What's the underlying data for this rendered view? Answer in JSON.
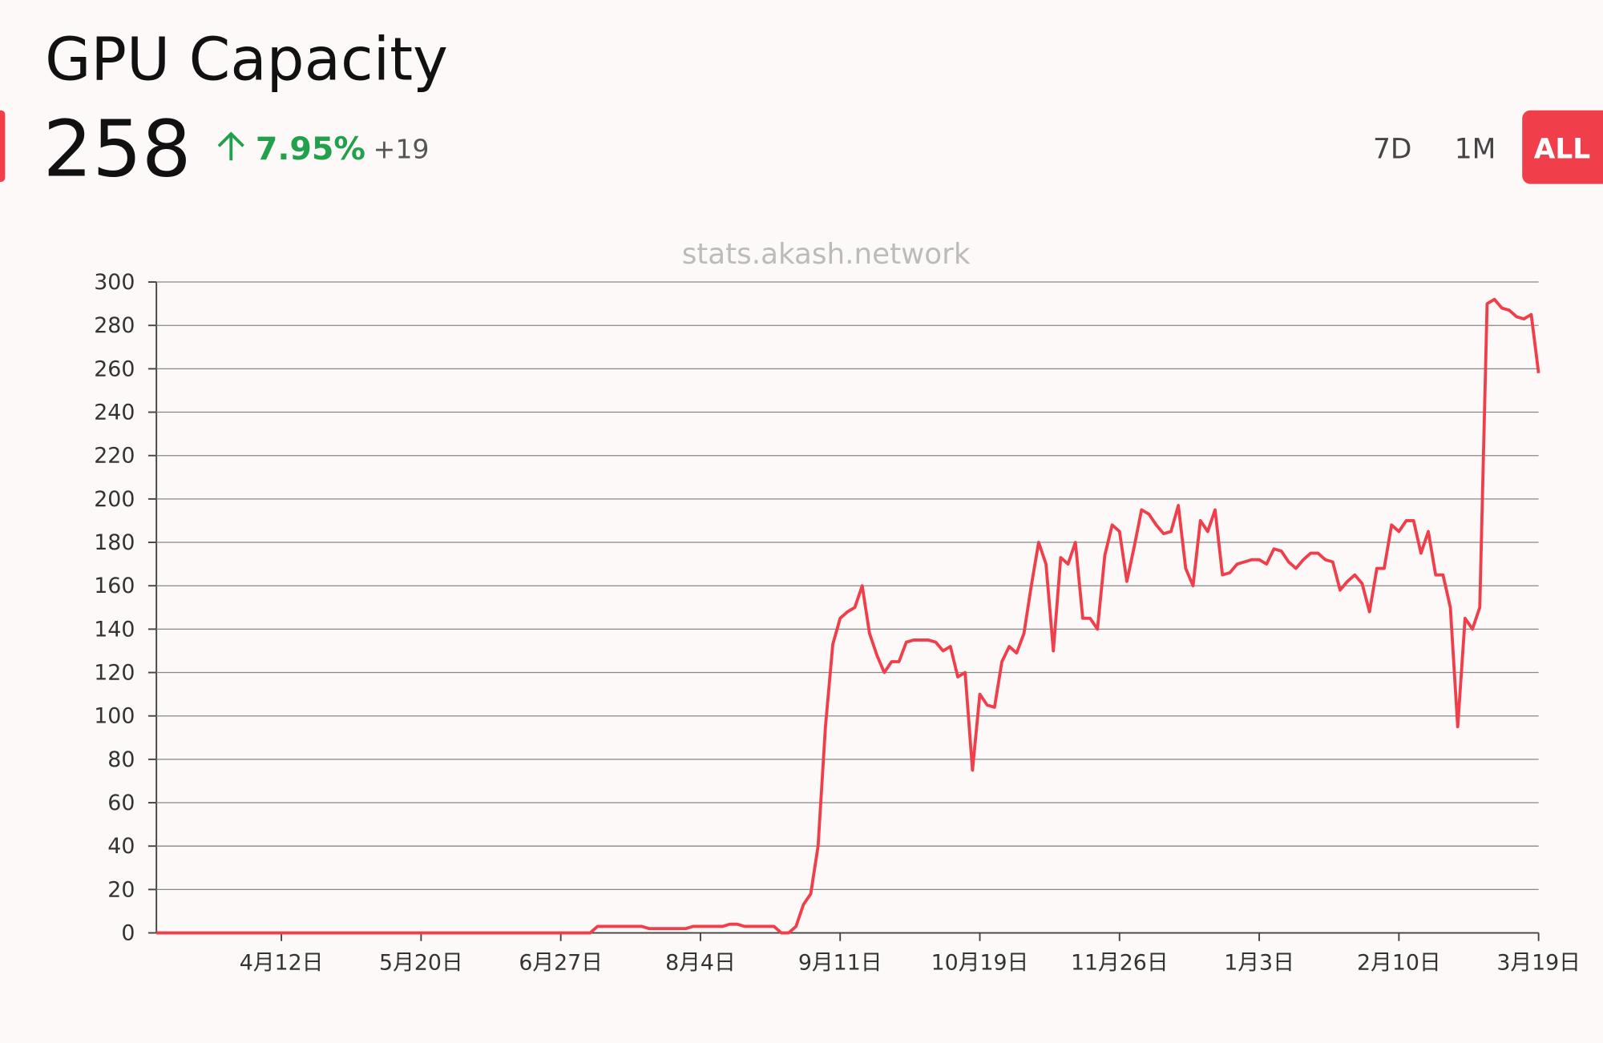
{
  "header": {
    "value": 258,
    "change": "7.95%",
    "delta": "+19"
  },
  "ranges": [
    "7D",
    "1M",
    "ALL"
  ],
  "selected_range": "ALL",
  "chart_data": {
    "type": "line",
    "title": "GPU Capacity",
    "watermark": "stats.akash.network",
    "color": "#f03e4b",
    "grid": true,
    "ylim": [
      0,
      300
    ],
    "yticks": [
      0,
      20,
      40,
      60,
      80,
      100,
      120,
      140,
      160,
      180,
      200,
      220,
      240,
      260,
      280,
      300
    ],
    "categories": [
      null,
      null,
      null,
      null,
      null,
      null,
      null,
      null,
      null,
      null,
      null,
      null,
      null,
      null,
      null,
      null,
      null,
      "4月12日",
      null,
      null,
      null,
      null,
      null,
      null,
      null,
      null,
      null,
      null,
      null,
      null,
      null,
      null,
      null,
      null,
      null,
      null,
      "5月20日",
      null,
      null,
      null,
      null,
      null,
      null,
      null,
      null,
      null,
      null,
      null,
      null,
      null,
      null,
      null,
      null,
      null,
      null,
      "6月27日",
      null,
      null,
      null,
      null,
      null,
      null,
      null,
      null,
      null,
      null,
      null,
      null,
      null,
      null,
      null,
      null,
      null,
      null,
      "8月4日",
      null,
      null,
      null,
      null,
      null,
      null,
      null,
      null,
      null,
      null,
      null,
      null,
      null,
      null,
      null,
      null,
      null,
      null,
      "9月11日",
      null,
      null,
      null,
      null,
      null,
      null,
      null,
      null,
      null,
      null,
      null,
      null,
      null,
      null,
      null,
      null,
      null,
      null,
      "10月19日",
      null,
      null,
      null,
      null,
      null,
      null,
      null,
      null,
      null,
      null,
      null,
      null,
      null,
      null,
      null,
      null,
      null,
      null,
      "11月26日",
      null,
      null,
      null,
      null,
      null,
      null,
      null,
      null,
      null,
      null,
      null,
      null,
      null,
      null,
      null,
      null,
      null,
      null,
      "1月3日",
      null,
      null,
      null,
      null,
      null,
      null,
      null,
      null,
      null,
      null,
      null,
      null,
      null,
      null,
      null,
      null,
      null,
      null,
      "2月10日",
      null,
      null,
      null,
      null,
      null,
      null,
      null,
      null,
      null,
      null,
      null,
      null,
      null,
      null,
      null,
      null,
      null,
      null,
      "3月19日"
    ],
    "values": [
      0,
      0,
      0,
      0,
      0,
      0,
      0,
      0,
      0,
      0,
      0,
      0,
      0,
      0,
      0,
      0,
      0,
      0,
      0,
      0,
      0,
      0,
      0,
      0,
      0,
      0,
      0,
      0,
      0,
      0,
      0,
      0,
      0,
      0,
      0,
      0,
      0,
      0,
      0,
      0,
      0,
      0,
      0,
      0,
      0,
      0,
      0,
      0,
      0,
      0,
      0,
      0,
      0,
      0,
      0,
      0,
      0,
      0,
      0,
      0,
      3,
      3,
      3,
      3,
      3,
      3,
      3,
      2,
      2,
      2,
      2,
      2,
      2,
      3,
      3,
      3,
      3,
      3,
      4,
      4,
      3,
      3,
      3,
      3,
      3,
      0,
      0,
      3,
      13,
      18,
      40,
      95,
      133,
      145,
      148,
      150,
      160,
      138,
      128,
      120,
      125,
      125,
      134,
      135,
      135,
      135,
      134,
      130,
      132,
      118,
      120,
      75,
      110,
      105,
      104,
      125,
      132,
      129,
      138,
      160,
      180,
      170,
      130,
      173,
      170,
      180,
      145,
      145,
      140,
      174,
      188,
      185,
      162,
      178,
      195,
      193,
      188,
      184,
      185,
      197,
      168,
      160,
      190,
      185,
      195,
      165,
      166,
      170,
      171,
      172,
      172,
      170,
      177,
      176,
      171,
      168,
      172,
      175,
      175,
      172,
      171,
      158,
      162,
      165,
      161,
      148,
      168,
      168,
      188,
      185,
      190,
      190,
      175,
      185,
      165,
      165,
      150,
      95,
      145,
      140,
      150,
      290,
      292,
      288,
      287,
      284,
      283,
      285,
      258
    ]
  }
}
